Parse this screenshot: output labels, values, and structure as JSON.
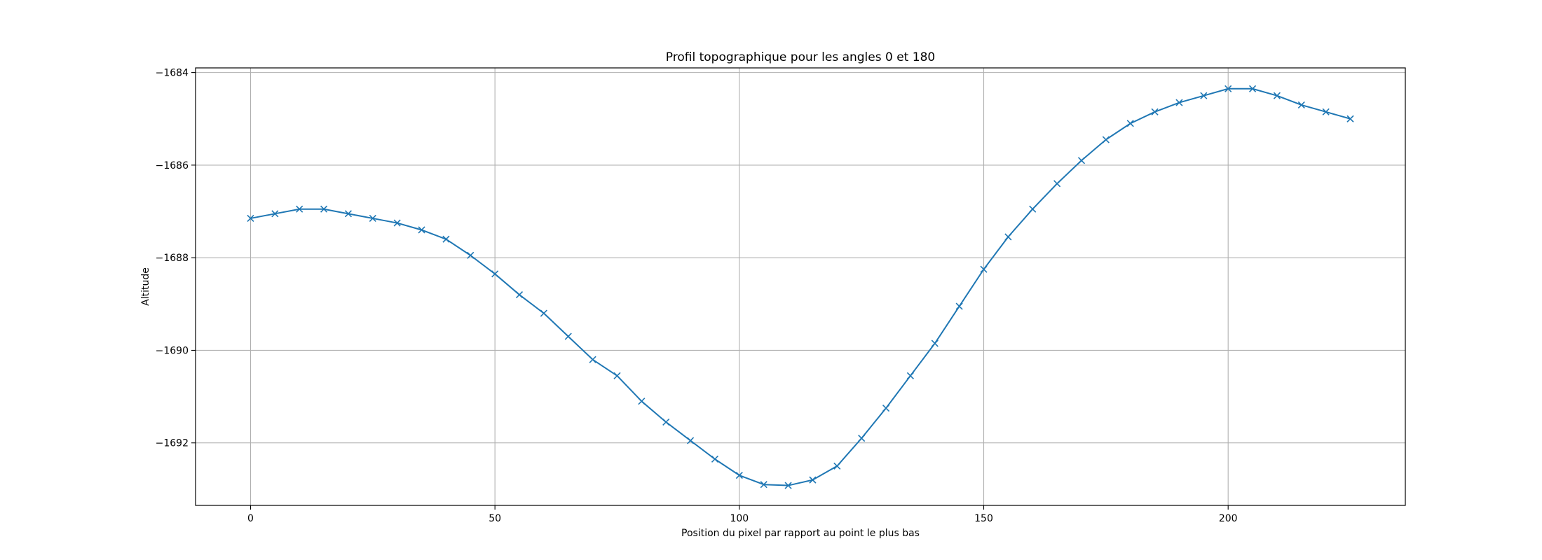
{
  "chart_data": {
    "type": "line",
    "title": "Profil topographique pour les angles 0 et 180",
    "xlabel": "Position du pixel par rapport au point le plus bas",
    "ylabel": "Altitude",
    "xlim": [
      -11.25,
      236.25
    ],
    "ylim": [
      -1693.35,
      -1683.9
    ],
    "xticks": [
      0,
      50,
      100,
      150,
      200
    ],
    "yticks": [
      -1692,
      -1690,
      -1688,
      -1686,
      -1684
    ],
    "grid": true,
    "marker": "x",
    "line_color": "#1f77b4",
    "series": [
      {
        "x": [
          0,
          5,
          10,
          15,
          20,
          25,
          30,
          35,
          40,
          45,
          50,
          55,
          60,
          65,
          70,
          75,
          80,
          85,
          90,
          95,
          100,
          105,
          110,
          115,
          120,
          125,
          130,
          135,
          140,
          145,
          150,
          155,
          160,
          165,
          170,
          175,
          180,
          185,
          190,
          195,
          200,
          205,
          210,
          215,
          220,
          225
        ],
        "y": [
          -1687.15,
          -1687.05,
          -1686.95,
          -1686.95,
          -1687.05,
          -1687.15,
          -1687.25,
          -1687.4,
          -1687.6,
          -1687.95,
          -1688.35,
          -1688.8,
          -1689.2,
          -1689.7,
          -1690.2,
          -1690.55,
          -1691.1,
          -1691.55,
          -1691.95,
          -1692.35,
          -1692.7,
          -1692.9,
          -1692.92,
          -1692.8,
          -1692.5,
          -1691.9,
          -1691.25,
          -1690.55,
          -1689.85,
          -1689.05,
          -1688.25,
          -1687.55,
          -1686.95,
          -1686.4,
          -1685.9,
          -1685.45,
          -1685.1,
          -1684.85,
          -1684.65,
          -1684.5,
          -1684.35,
          -1684.35,
          -1684.5,
          -1684.7,
          -1684.85,
          -1685.0
        ]
      }
    ]
  }
}
